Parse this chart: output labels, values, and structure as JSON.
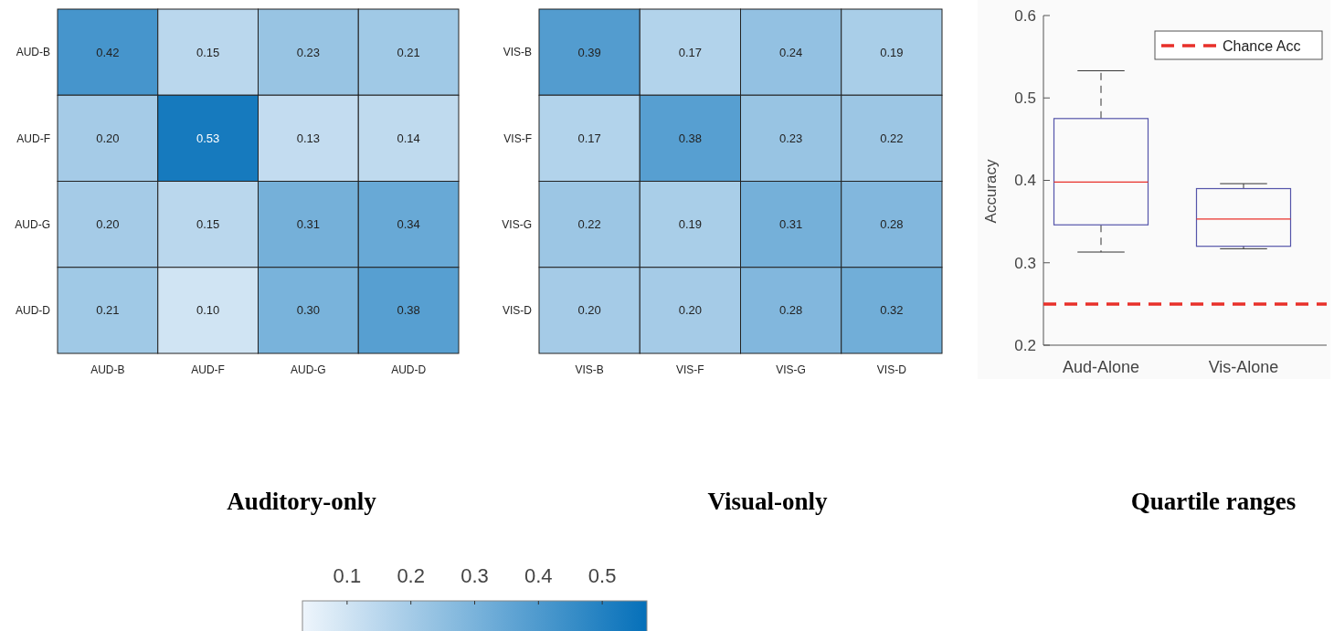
{
  "chart_data": [
    {
      "type": "heatmap",
      "title": "Auditory-only",
      "categories": [
        "AUD-B",
        "AUD-F",
        "AUD-G",
        "AUD-D"
      ],
      "y_categories": [
        "AUD-B",
        "AUD-F",
        "AUD-G",
        "AUD-D"
      ],
      "cells": [
        [
          0.42,
          0.15,
          0.23,
          0.21
        ],
        [
          0.2,
          0.53,
          0.13,
          0.14
        ],
        [
          0.2,
          0.15,
          0.31,
          0.34
        ],
        [
          0.21,
          0.1,
          0.3,
          0.38
        ]
      ],
      "cell_labels": [
        [
          "0.42",
          "0.15",
          "0.23",
          "0.21"
        ],
        [
          "0.20",
          "0.53",
          "0.13",
          "0.14"
        ],
        [
          "0.20",
          "0.15",
          "0.31",
          "0.34"
        ],
        [
          "0.21",
          "0.10",
          "0.30",
          "0.38"
        ]
      ],
      "clim": [
        0.03,
        0.57
      ],
      "cticks": [
        0.1,
        0.2,
        0.3,
        0.4,
        0.5
      ]
    },
    {
      "type": "heatmap",
      "title": "Visual-only",
      "categories": [
        "VIS-B",
        "VIS-F",
        "VIS-G",
        "VIS-D"
      ],
      "y_categories": [
        "VIS-B",
        "VIS-F",
        "VIS-G",
        "VIS-D"
      ],
      "cells": [
        [
          0.39,
          0.17,
          0.24,
          0.19
        ],
        [
          0.17,
          0.38,
          0.23,
          0.22
        ],
        [
          0.22,
          0.19,
          0.31,
          0.28
        ],
        [
          0.2,
          0.2,
          0.28,
          0.32
        ]
      ],
      "cell_labels": [
        [
          "0.39",
          "0.17",
          "0.24",
          "0.19"
        ],
        [
          "0.17",
          "0.38",
          "0.23",
          "0.22"
        ],
        [
          "0.22",
          "0.19",
          "0.31",
          "0.28"
        ],
        [
          "0.20",
          "0.20",
          "0.28",
          "0.32"
        ]
      ]
    },
    {
      "type": "box",
      "title": "Quartile ranges",
      "ylabel": "Accuracy",
      "categories": [
        "Aud-Alone",
        "Vis-Alone"
      ],
      "boxes": [
        {
          "low": 0.313,
          "q1": 0.346,
          "median": 0.398,
          "q3": 0.475,
          "high": 0.533
        },
        {
          "low": 0.317,
          "q1": 0.32,
          "median": 0.353,
          "q3": 0.39,
          "high": 0.396
        }
      ],
      "ylim": [
        0.2,
        0.6
      ],
      "yticks": [
        0.2,
        0.3,
        0.4,
        0.5,
        0.6
      ],
      "ref_lines": [
        {
          "axis": "y",
          "value": 0.25,
          "label": "Chance Acc",
          "color": "#e8302a",
          "line_style": "dashed"
        }
      ],
      "legend": "top right",
      "grid": false
    }
  ]
}
